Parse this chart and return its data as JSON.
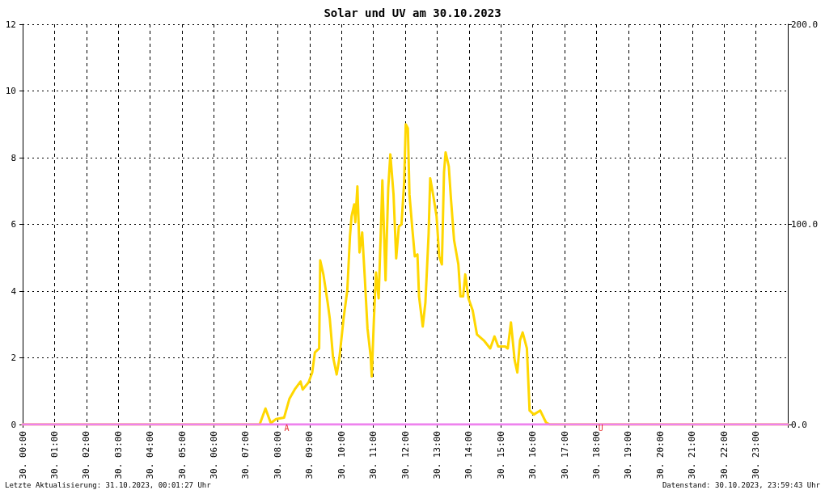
{
  "chart_data": {
    "type": "line",
    "title": "Solar und UV am 30.10.2023",
    "xlim": [
      "2023-10-30T00:00",
      "2023-10-31T00:00"
    ],
    "xticks": [
      {
        "value": "2023-10-30T00:00",
        "label": "30. 00:00"
      },
      {
        "value": "2023-10-30T01:00",
        "label": "30. 01:00"
      },
      {
        "value": "2023-10-30T02:00",
        "label": "30. 02:00"
      },
      {
        "value": "2023-10-30T03:00",
        "label": "30. 03:00"
      },
      {
        "value": "2023-10-30T04:00",
        "label": "30. 04:00"
      },
      {
        "value": "2023-10-30T05:00",
        "label": "30. 05:00"
      },
      {
        "value": "2023-10-30T06:00",
        "label": "30. 06:00"
      },
      {
        "value": "2023-10-30T07:00",
        "label": "30. 07:00"
      },
      {
        "value": "2023-10-30T08:00",
        "label": "30. 08:00"
      },
      {
        "value": "2023-10-30T09:00",
        "label": "30. 09:00"
      },
      {
        "value": "2023-10-30T10:00",
        "label": "30. 10:00"
      },
      {
        "value": "2023-10-30T11:00",
        "label": "30. 11:00"
      },
      {
        "value": "2023-10-30T12:00",
        "label": "30. 12:00"
      },
      {
        "value": "2023-10-30T13:00",
        "label": "30. 13:00"
      },
      {
        "value": "2023-10-30T14:00",
        "label": "30. 14:00"
      },
      {
        "value": "2023-10-30T15:00",
        "label": "30. 15:00"
      },
      {
        "value": "2023-10-30T16:00",
        "label": "30. 16:00"
      },
      {
        "value": "2023-10-30T17:00",
        "label": "30. 17:00"
      },
      {
        "value": "2023-10-30T18:00",
        "label": "30. 18:00"
      },
      {
        "value": "2023-10-30T19:00",
        "label": "30. 19:00"
      },
      {
        "value": "2023-10-30T20:00",
        "label": "30. 20:00"
      },
      {
        "value": "2023-10-30T21:00",
        "label": "30. 21:00"
      },
      {
        "value": "2023-10-30T22:00",
        "label": "30. 22:00"
      },
      {
        "value": "2023-10-30T23:00",
        "label": "30. 23:00"
      }
    ],
    "ylim": [
      0,
      12
    ],
    "yticks": [
      0,
      2,
      4,
      6,
      8,
      10,
      12
    ],
    "y2lim": [
      0,
      200
    ],
    "y2ticks": [
      {
        "value": 0,
        "label": "0.0"
      },
      {
        "value": 100,
        "label": "100.0"
      },
      {
        "value": 200,
        "label": "200.0"
      }
    ],
    "grid": true,
    "marker": "none",
    "series": [
      {
        "color": "#ffd700",
        "axis": "y2",
        "x": [
          "2023-10-30T00:00",
          "2023-10-30T07:26",
          "2023-10-30T07:37",
          "2023-10-30T07:47",
          "2023-10-30T07:57",
          "2023-10-30T08:12",
          "2023-10-30T08:22",
          "2023-10-30T08:32",
          "2023-10-30T08:43",
          "2023-10-30T08:47",
          "2023-10-30T08:58",
          "2023-10-30T09:05",
          "2023-10-30T09:10",
          "2023-10-30T09:18",
          "2023-10-30T09:20",
          "2023-10-30T09:26",
          "2023-10-30T09:34",
          "2023-10-30T09:38",
          "2023-10-30T09:44",
          "2023-10-30T09:51",
          "2023-10-30T09:56",
          "2023-10-30T10:04",
          "2023-10-30T10:11",
          "2023-10-30T10:16",
          "2023-10-30T10:19",
          "2023-10-30T10:24",
          "2023-10-30T10:26",
          "2023-10-30T10:30",
          "2023-10-30T10:34",
          "2023-10-30T10:39",
          "2023-10-30T10:44",
          "2023-10-30T10:49",
          "2023-10-30T10:55",
          "2023-10-30T10:57",
          "2023-10-30T11:01",
          "2023-10-30T11:05",
          "2023-10-30T11:10",
          "2023-10-30T11:15",
          "2023-10-30T11:17",
          "2023-10-30T11:23",
          "2023-10-30T11:28",
          "2023-10-30T11:32",
          "2023-10-30T11:38",
          "2023-10-30T11:43",
          "2023-10-30T11:48",
          "2023-10-30T11:53",
          "2023-10-30T11:58",
          "2023-10-30T12:01",
          "2023-10-30T12:05",
          "2023-10-30T12:08",
          "2023-10-30T12:13",
          "2023-10-30T12:18",
          "2023-10-30T12:23",
          "2023-10-30T12:26",
          "2023-10-30T12:33",
          "2023-10-30T12:38",
          "2023-10-30T12:44",
          "2023-10-30T12:47",
          "2023-10-30T12:53",
          "2023-10-30T12:59",
          "2023-10-30T13:04",
          "2023-10-30T13:09",
          "2023-10-30T13:13",
          "2023-10-30T13:16",
          "2023-10-30T13:22",
          "2023-10-30T13:26",
          "2023-10-30T13:32",
          "2023-10-30T13:40",
          "2023-10-30T13:44",
          "2023-10-30T13:49",
          "2023-10-30T13:53",
          "2023-10-30T13:59",
          "2023-10-30T14:07",
          "2023-10-30T14:15",
          "2023-10-30T14:28",
          "2023-10-30T14:40",
          "2023-10-30T14:48",
          "2023-10-30T14:55",
          "2023-10-30T15:08",
          "2023-10-30T15:13",
          "2023-10-30T15:19",
          "2023-10-30T15:26",
          "2023-10-30T15:31",
          "2023-10-30T15:36",
          "2023-10-30T15:41",
          "2023-10-30T15:49",
          "2023-10-30T15:54",
          "2023-10-30T16:02",
          "2023-10-30T16:14",
          "2023-10-30T16:25",
          "2023-10-30T16:32",
          "2023-10-31T00:00"
        ],
        "values": [
          0,
          0,
          8,
          0.7,
          2.7,
          3.4,
          12.8,
          17.5,
          21.5,
          17.5,
          21,
          26,
          36,
          38,
          82,
          75,
          61,
          53,
          34,
          25,
          33,
          53,
          67,
          94,
          104,
          110,
          101,
          119,
          86,
          96,
          73,
          48,
          34,
          24,
          52,
          76,
          63,
          104,
          122,
          72,
          118,
          135,
          115,
          83,
          99,
          100,
          121,
          150,
          148,
          115,
          99,
          84,
          85,
          64,
          49,
          61,
          95,
          123,
          114,
          104,
          84,
          80,
          126,
          136,
          129,
          113,
          92,
          80,
          64,
          64,
          75,
          63,
          57,
          45,
          42,
          38,
          44,
          39,
          39,
          38,
          51,
          32,
          26,
          42,
          46,
          38,
          7,
          5,
          7,
          1,
          0,
          0
        ]
      },
      {
        "color": "#ee82ee",
        "x": [
          "2023-10-30T00:00",
          "2023-10-31T00:00"
        ],
        "values": [
          0,
          0
        ]
      }
    ],
    "annotations": [
      {
        "text": "A",
        "x": "2023-10-30T08:11",
        "y": 0
      },
      {
        "text": "U",
        "x": "2023-10-30T18:02",
        "y": 0
      },
      "Letzte Aktualisierung: 31.10.2023, 00:01:27 Uhr",
      "Datenstand: 30.10.2023, 23:59:43 Uhr"
    ]
  }
}
